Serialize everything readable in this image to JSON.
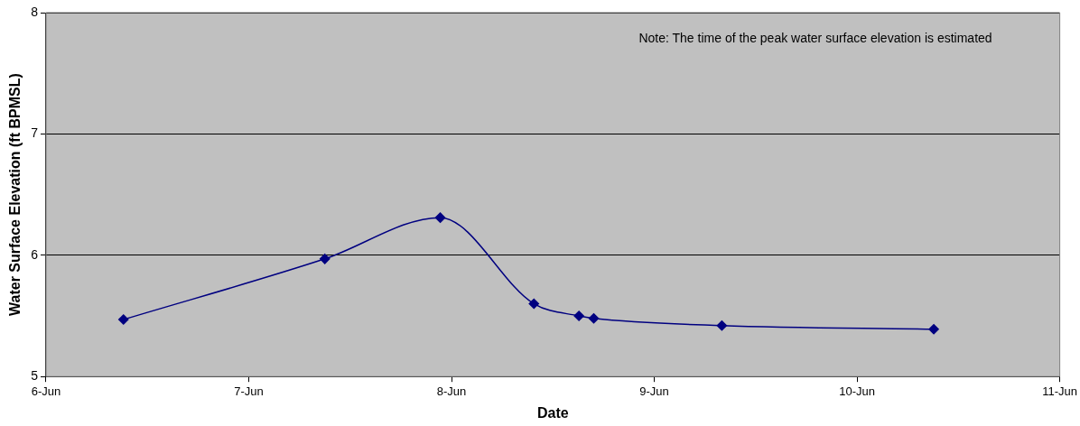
{
  "chart_data": {
    "type": "line",
    "xlabel": "Date",
    "ylabel": "Water Surface Elevation (ft BPMSL)",
    "annotations": [
      "Note: The time of the peak water surface elevation is estimated"
    ],
    "x": [
      "--06-06T09:10",
      "--06-07T09:00",
      "--06-07T22:40",
      "--06-08T09:45",
      "--06-08T15:05",
      "--06-08T16:50",
      "--06-09T08:00",
      "--06-10T09:05"
    ],
    "series": [
      {
        "color": "#000080",
        "values": [
          5.47,
          5.97,
          6.31,
          5.6,
          5.5,
          5.48,
          5.42,
          5.39
        ]
      }
    ],
    "xlim": [
      "--06-06",
      "--06-11"
    ],
    "xticks": [
      {
        "value": "--06-06",
        "label": "6-Jun"
      },
      {
        "value": "--06-07",
        "label": "7-Jun"
      },
      {
        "value": "--06-08",
        "label": "8-Jun"
      },
      {
        "value": "--06-09",
        "label": "9-Jun"
      },
      {
        "value": "--06-10",
        "label": "10-Jun"
      },
      {
        "value": "--06-11",
        "label": "11-Jun"
      }
    ],
    "ylim": [
      5,
      8
    ],
    "yticks": [
      5,
      6,
      7,
      8
    ],
    "grid": "y",
    "marker": "diamond",
    "line_style": "solid",
    "legend": false
  }
}
